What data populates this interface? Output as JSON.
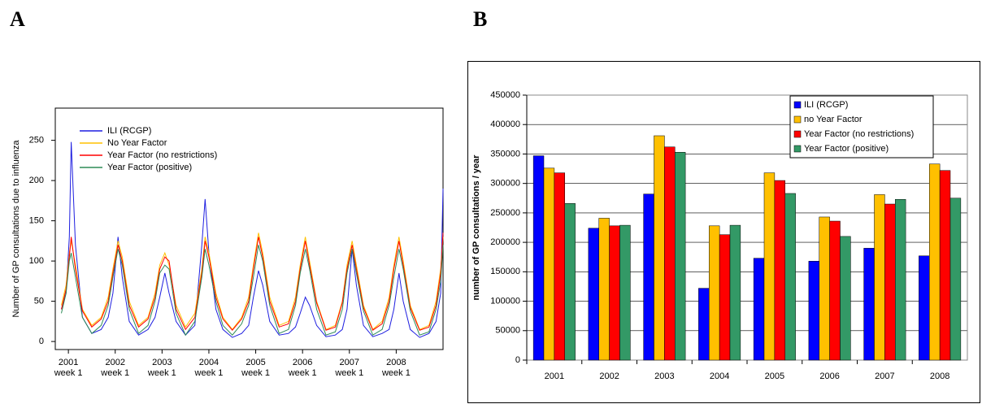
{
  "chart_data": [
    {
      "type": "line",
      "label": "A",
      "ylabel": "Number of GP consultations due to influenza",
      "x": [
        2000.85,
        2000.95,
        2001.02,
        2001.06,
        2001.15,
        2001.3,
        2001.5,
        2001.7,
        2001.85,
        2001.95,
        2002.06,
        2002.15,
        2002.3,
        2002.5,
        2002.7,
        2002.85,
        2002.95,
        2003.06,
        2003.15,
        2003.3,
        2003.5,
        2003.7,
        2003.85,
        2003.92,
        2004.0,
        2004.15,
        2004.3,
        2004.5,
        2004.7,
        2004.85,
        2004.95,
        2005.06,
        2005.15,
        2005.3,
        2005.5,
        2005.7,
        2005.85,
        2005.95,
        2006.06,
        2006.15,
        2006.3,
        2006.5,
        2006.7,
        2006.85,
        2006.95,
        2007.06,
        2007.15,
        2007.3,
        2007.5,
        2007.7,
        2007.85,
        2007.95,
        2008.06,
        2008.15,
        2008.3,
        2008.5,
        2008.7,
        2008.85,
        2008.95,
        2009.0
      ],
      "series": [
        {
          "name": "ILI (RCGP)",
          "color": "#1f1fe0",
          "values": [
            40,
            60,
            130,
            248,
            120,
            30,
            10,
            15,
            30,
            60,
            130,
            80,
            25,
            8,
            15,
            30,
            55,
            85,
            60,
            25,
            8,
            20,
            120,
            177,
            110,
            40,
            15,
            5,
            10,
            20,
            55,
            88,
            70,
            25,
            8,
            10,
            18,
            35,
            55,
            45,
            20,
            6,
            8,
            15,
            40,
            115,
            70,
            20,
            6,
            10,
            15,
            40,
            85,
            50,
            15,
            5,
            10,
            25,
            60,
            190
          ]
        },
        {
          "name": "No Year Factor",
          "color": "#ffc000",
          "values": [
            45,
            70,
            110,
            125,
            95,
            40,
            20,
            30,
            55,
            90,
            125,
            105,
            50,
            20,
            30,
            60,
            95,
            110,
            95,
            45,
            18,
            35,
            90,
            130,
            110,
            60,
            30,
            15,
            30,
            55,
            95,
            135,
            110,
            55,
            20,
            25,
            55,
            95,
            130,
            100,
            50,
            15,
            20,
            50,
            95,
            125,
            95,
            45,
            15,
            25,
            55,
            95,
            130,
            100,
            45,
            15,
            20,
            50,
            90,
            130
          ]
        },
        {
          "name": "Year Factor (no restrictions)",
          "color": "#ff0000",
          "values": [
            40,
            65,
            105,
            130,
            90,
            38,
            18,
            28,
            50,
            85,
            120,
            100,
            45,
            18,
            28,
            55,
            90,
            105,
            100,
            40,
            15,
            30,
            85,
            125,
            105,
            55,
            28,
            14,
            28,
            50,
            90,
            130,
            105,
            50,
            18,
            22,
            50,
            90,
            125,
            95,
            48,
            14,
            18,
            48,
            90,
            120,
            90,
            42,
            14,
            22,
            50,
            90,
            125,
            95,
            42,
            14,
            18,
            45,
            85,
            135
          ]
        },
        {
          "name": "Year Factor (positive)",
          "color": "#2e8b57",
          "values": [
            35,
            60,
            100,
            110,
            80,
            30,
            10,
            20,
            45,
            80,
            115,
            95,
            40,
            10,
            20,
            50,
            85,
            95,
            90,
            35,
            8,
            25,
            80,
            115,
            95,
            50,
            20,
            8,
            22,
            45,
            80,
            120,
            100,
            45,
            10,
            15,
            45,
            85,
            115,
            90,
            40,
            8,
            12,
            40,
            85,
            115,
            85,
            38,
            8,
            15,
            45,
            80,
            115,
            90,
            38,
            8,
            12,
            40,
            75,
            120
          ]
        }
      ],
      "xlim": [
        2000.72,
        2009.0
      ],
      "xticks": [
        {
          "value": 2001,
          "label": "2001 week 1"
        },
        {
          "value": 2002,
          "label": "2002 week 1"
        },
        {
          "value": 2003,
          "label": "2003 week 1"
        },
        {
          "value": 2004,
          "label": "2004 week 1"
        },
        {
          "value": 2005,
          "label": "2005 week 1"
        },
        {
          "value": 2006,
          "label": "2006 week 1"
        },
        {
          "value": 2007,
          "label": "2007 week 1"
        },
        {
          "value": 2008,
          "label": "2008 week 1"
        }
      ],
      "ylim": [
        -10,
        290
      ],
      "yticks": [
        0,
        50,
        100,
        150,
        200,
        250
      ],
      "grid": false,
      "legend": "upper left"
    },
    {
      "type": "bar",
      "label": "B",
      "ylabel": "number of GP consultations / year",
      "categories": [
        "2001",
        "2002",
        "2003",
        "2004",
        "2005",
        "2006",
        "2007",
        "2008"
      ],
      "series": [
        {
          "name": "ILI (RCGP)",
          "color": "#0000ff",
          "values": [
            347000,
            224000,
            282000,
            122000,
            173000,
            168000,
            190000,
            177000
          ]
        },
        {
          "name": "no Year Factor",
          "color": "#ffc000",
          "values": [
            326000,
            241000,
            381000,
            228000,
            318000,
            243000,
            281000,
            333000
          ]
        },
        {
          "name": "Year Factor (no restrictions)",
          "color": "#ff0000",
          "values": [
            318000,
            228000,
            362000,
            213000,
            305000,
            236000,
            265000,
            322000
          ]
        },
        {
          "name": "Year Factor (positive)",
          "color": "#339966",
          "values": [
            266000,
            229000,
            353000,
            229000,
            283000,
            210000,
            273000,
            275000
          ]
        }
      ],
      "ylim": [
        0,
        450000
      ],
      "yticks": [
        0,
        50000,
        100000,
        150000,
        200000,
        250000,
        300000,
        350000,
        400000,
        450000
      ],
      "grid": true,
      "legend": "upper right"
    }
  ]
}
